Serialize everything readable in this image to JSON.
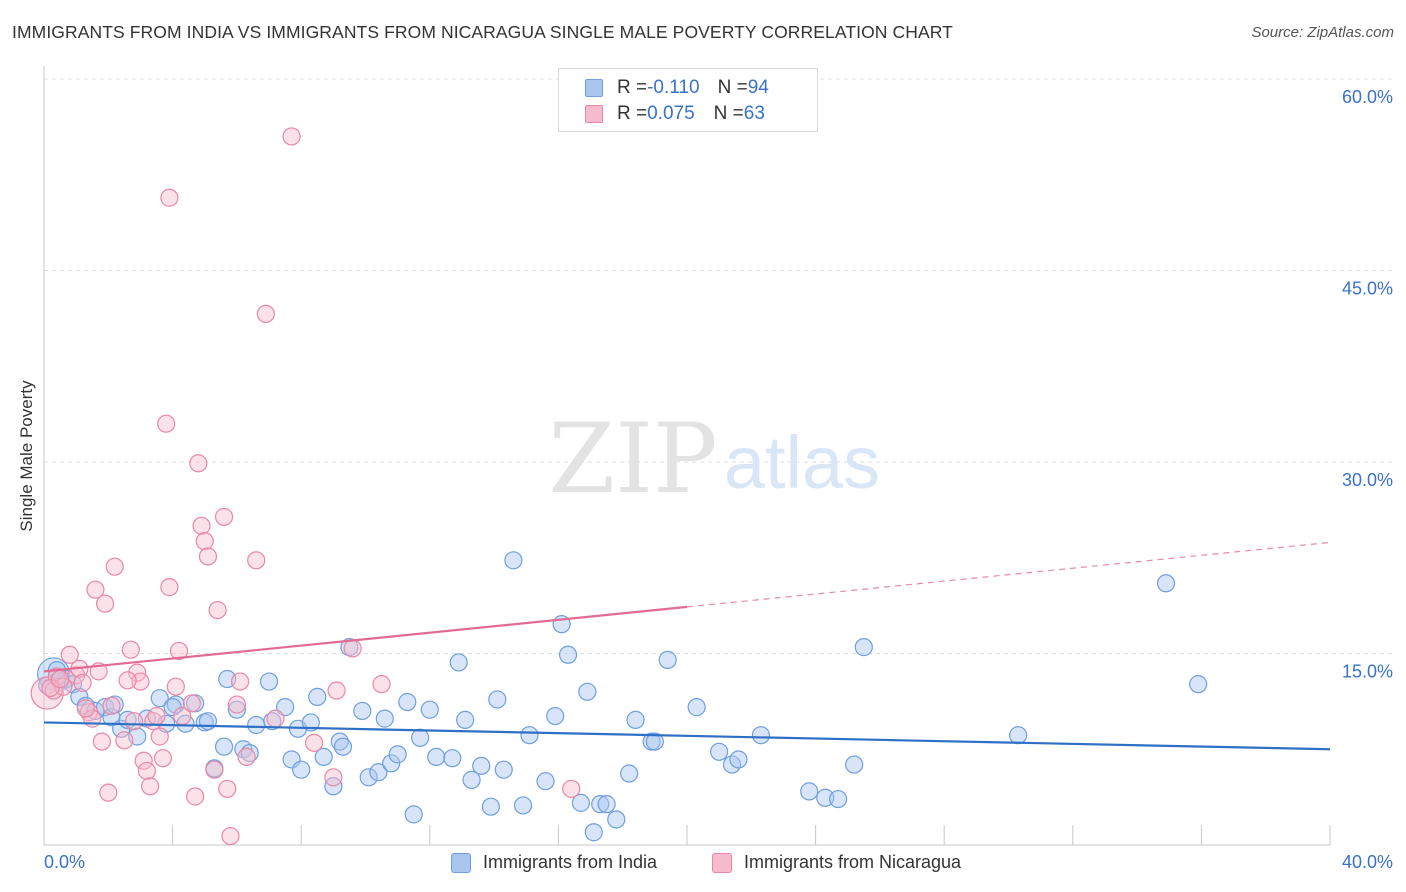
{
  "title": "IMMIGRANTS FROM INDIA VS IMMIGRANTS FROM NICARAGUA SINGLE MALE POVERTY CORRELATION CHART",
  "source": "Source: ZipAtlas.com",
  "watermark": {
    "zip": "ZIP",
    "atlas": "atlas"
  },
  "legend_top": {
    "india": {
      "r_label": "R = ",
      "r_value": "-0.110",
      "n_label": "N = ",
      "n_value": "94"
    },
    "nicaragua": {
      "r_label": "R = ",
      "r_value": "0.075",
      "n_label": "N = ",
      "n_value": "63"
    }
  },
  "colors": {
    "india_fill": "#a9c6ef",
    "india_stroke": "#6f9fdd",
    "india_line": "#2f70c7",
    "nicaragua_fill": "#f6bccd",
    "nicaragua_stroke": "#e987a6",
    "nicaragua_line": "#e26a93",
    "grid": "#dcdcdc",
    "axis_text": "#3a72c9"
  },
  "chart_data": {
    "type": "scatter",
    "title": "IMMIGRANTS FROM INDIA VS IMMIGRANTS FROM NICARAGUA SINGLE MALE POVERTY CORRELATION CHART",
    "xlabel": "",
    "ylabel": "Single Male Poverty",
    "xlim": [
      0,
      40
    ],
    "ylim": [
      0,
      60
    ],
    "x_tick_labels": [
      "0.0%",
      "40.0%"
    ],
    "y_ticks": [
      15,
      30,
      45,
      60
    ],
    "y_tick_labels": [
      "15.0%",
      "30.0%",
      "45.0%",
      "60.0%"
    ],
    "grid": true,
    "legend_position": "top-center",
    "series": [
      {
        "name": "Immigrants from India",
        "r": -0.11,
        "n": 94,
        "trend": {
          "x": [
            0,
            40
          ],
          "y": [
            9.6,
            7.5
          ],
          "dashed_from": null
        },
        "points": [
          [
            0.3,
            13.4
          ],
          [
            0.5,
            12.8
          ],
          [
            0.7,
            13.0
          ],
          [
            0.9,
            12.6
          ],
          [
            1.1,
            11.6
          ],
          [
            1.3,
            10.9
          ],
          [
            1.6,
            10.5
          ],
          [
            1.9,
            10.8
          ],
          [
            2.1,
            10.0
          ],
          [
            2.4,
            9.1
          ],
          [
            2.6,
            9.8
          ],
          [
            2.9,
            8.5
          ],
          [
            3.2,
            9.9
          ],
          [
            3.6,
            11.5
          ],
          [
            3.8,
            9.5
          ],
          [
            4.1,
            11.0
          ],
          [
            4.4,
            9.5
          ],
          [
            4.7,
            11.1
          ],
          [
            5.0,
            9.6
          ],
          [
            5.1,
            9.7
          ],
          [
            5.3,
            6.0
          ],
          [
            5.6,
            7.7
          ],
          [
            5.7,
            13.0
          ],
          [
            6.0,
            10.6
          ],
          [
            6.2,
            7.5
          ],
          [
            6.4,
            7.2
          ],
          [
            6.6,
            9.4
          ],
          [
            7.0,
            12.8
          ],
          [
            7.1,
            9.7
          ],
          [
            7.5,
            10.8
          ],
          [
            7.7,
            6.7
          ],
          [
            7.9,
            9.1
          ],
          [
            8.0,
            5.9
          ],
          [
            8.3,
            9.6
          ],
          [
            8.5,
            11.6
          ],
          [
            8.7,
            6.9
          ],
          [
            9.0,
            4.6
          ],
          [
            9.2,
            8.1
          ],
          [
            9.3,
            7.7
          ],
          [
            9.5,
            15.5
          ],
          [
            9.9,
            10.5
          ],
          [
            10.1,
            5.3
          ],
          [
            10.4,
            5.7
          ],
          [
            10.6,
            9.9
          ],
          [
            10.8,
            6.4
          ],
          [
            11.0,
            7.1
          ],
          [
            11.3,
            11.2
          ],
          [
            11.5,
            2.4
          ],
          [
            11.7,
            8.4
          ],
          [
            12.0,
            10.6
          ],
          [
            12.2,
            6.9
          ],
          [
            12.7,
            6.8
          ],
          [
            12.9,
            14.3
          ],
          [
            13.1,
            9.8
          ],
          [
            13.3,
            5.1
          ],
          [
            13.6,
            6.2
          ],
          [
            13.9,
            3.0
          ],
          [
            14.1,
            11.4
          ],
          [
            14.3,
            5.9
          ],
          [
            14.6,
            22.3
          ],
          [
            14.9,
            3.1
          ],
          [
            15.1,
            8.6
          ],
          [
            15.6,
            5.0
          ],
          [
            15.9,
            10.1
          ],
          [
            16.1,
            17.3
          ],
          [
            16.3,
            14.9
          ],
          [
            16.7,
            3.3
          ],
          [
            16.9,
            12.0
          ],
          [
            17.1,
            1.0
          ],
          [
            17.3,
            3.2
          ],
          [
            17.5,
            3.2
          ],
          [
            17.8,
            2.0
          ],
          [
            18.2,
            5.6
          ],
          [
            18.4,
            9.8
          ],
          [
            18.9,
            8.1
          ],
          [
            19.0,
            8.1
          ],
          [
            19.4,
            14.5
          ],
          [
            20.3,
            10.8
          ],
          [
            21.0,
            7.3
          ],
          [
            21.4,
            6.3
          ],
          [
            21.6,
            6.7
          ],
          [
            22.3,
            8.6
          ],
          [
            23.8,
            4.2
          ],
          [
            24.3,
            3.7
          ],
          [
            24.7,
            3.6
          ],
          [
            25.2,
            6.3
          ],
          [
            25.5,
            15.5
          ],
          [
            30.3,
            8.6
          ],
          [
            34.9,
            20.5
          ],
          [
            35.9,
            12.6
          ],
          [
            0.1,
            12.5
          ],
          [
            0.4,
            13.7
          ],
          [
            4.0,
            10.8
          ],
          [
            2.2,
            11.0
          ]
        ]
      },
      {
        "name": "Immigrants from Nicaragua",
        "r": 0.075,
        "n": 63,
        "trend": {
          "x": [
            0,
            40
          ],
          "y": [
            13.6,
            23.7
          ],
          "dashed_from": 20
        },
        "points": [
          [
            0.1,
            11.9
          ],
          [
            0.3,
            12.1
          ],
          [
            0.4,
            13.2
          ],
          [
            0.6,
            12.4
          ],
          [
            0.8,
            14.9
          ],
          [
            1.0,
            13.3
          ],
          [
            1.1,
            13.8
          ],
          [
            1.2,
            12.7
          ],
          [
            1.4,
            10.4
          ],
          [
            1.5,
            9.9
          ],
          [
            1.7,
            13.6
          ],
          [
            1.8,
            8.1
          ],
          [
            1.9,
            18.9
          ],
          [
            2.0,
            4.1
          ],
          [
            2.1,
            10.9
          ],
          [
            2.2,
            21.8
          ],
          [
            2.5,
            8.2
          ],
          [
            2.7,
            15.3
          ],
          [
            2.8,
            9.7
          ],
          [
            2.9,
            13.5
          ],
          [
            3.0,
            12.8
          ],
          [
            3.1,
            6.6
          ],
          [
            3.2,
            5.8
          ],
          [
            3.3,
            4.6
          ],
          [
            3.4,
            9.7
          ],
          [
            3.5,
            10.1
          ],
          [
            3.6,
            8.5
          ],
          [
            3.7,
            6.8
          ],
          [
            3.8,
            33.0
          ],
          [
            3.9,
            20.2
          ],
          [
            4.1,
            12.4
          ],
          [
            4.2,
            15.2
          ],
          [
            4.3,
            10.1
          ],
          [
            4.6,
            11.1
          ],
          [
            4.7,
            3.8
          ],
          [
            4.8,
            29.9
          ],
          [
            4.9,
            25.0
          ],
          [
            5.0,
            23.8
          ],
          [
            5.1,
            22.6
          ],
          [
            5.3,
            5.9
          ],
          [
            5.4,
            18.4
          ],
          [
            5.6,
            25.7
          ],
          [
            5.7,
            4.4
          ],
          [
            5.8,
            0.7
          ],
          [
            6.0,
            11.0
          ],
          [
            6.3,
            6.9
          ],
          [
            6.6,
            22.3
          ],
          [
            6.9,
            41.6
          ],
          [
            7.2,
            9.9
          ],
          [
            7.7,
            55.5
          ],
          [
            8.4,
            8.0
          ],
          [
            9.0,
            5.3
          ],
          [
            9.1,
            12.1
          ],
          [
            9.6,
            15.4
          ],
          [
            10.5,
            12.6
          ],
          [
            16.4,
            4.4
          ],
          [
            0.2,
            12.3
          ],
          [
            0.5,
            13.0
          ],
          [
            1.3,
            10.7
          ],
          [
            2.6,
            12.9
          ],
          [
            3.9,
            50.7
          ],
          [
            6.1,
            12.8
          ],
          [
            1.6,
            20.0
          ]
        ]
      }
    ]
  },
  "legend_bottom": [
    "Immigrants from India",
    "Immigrants from Nicaragua"
  ]
}
